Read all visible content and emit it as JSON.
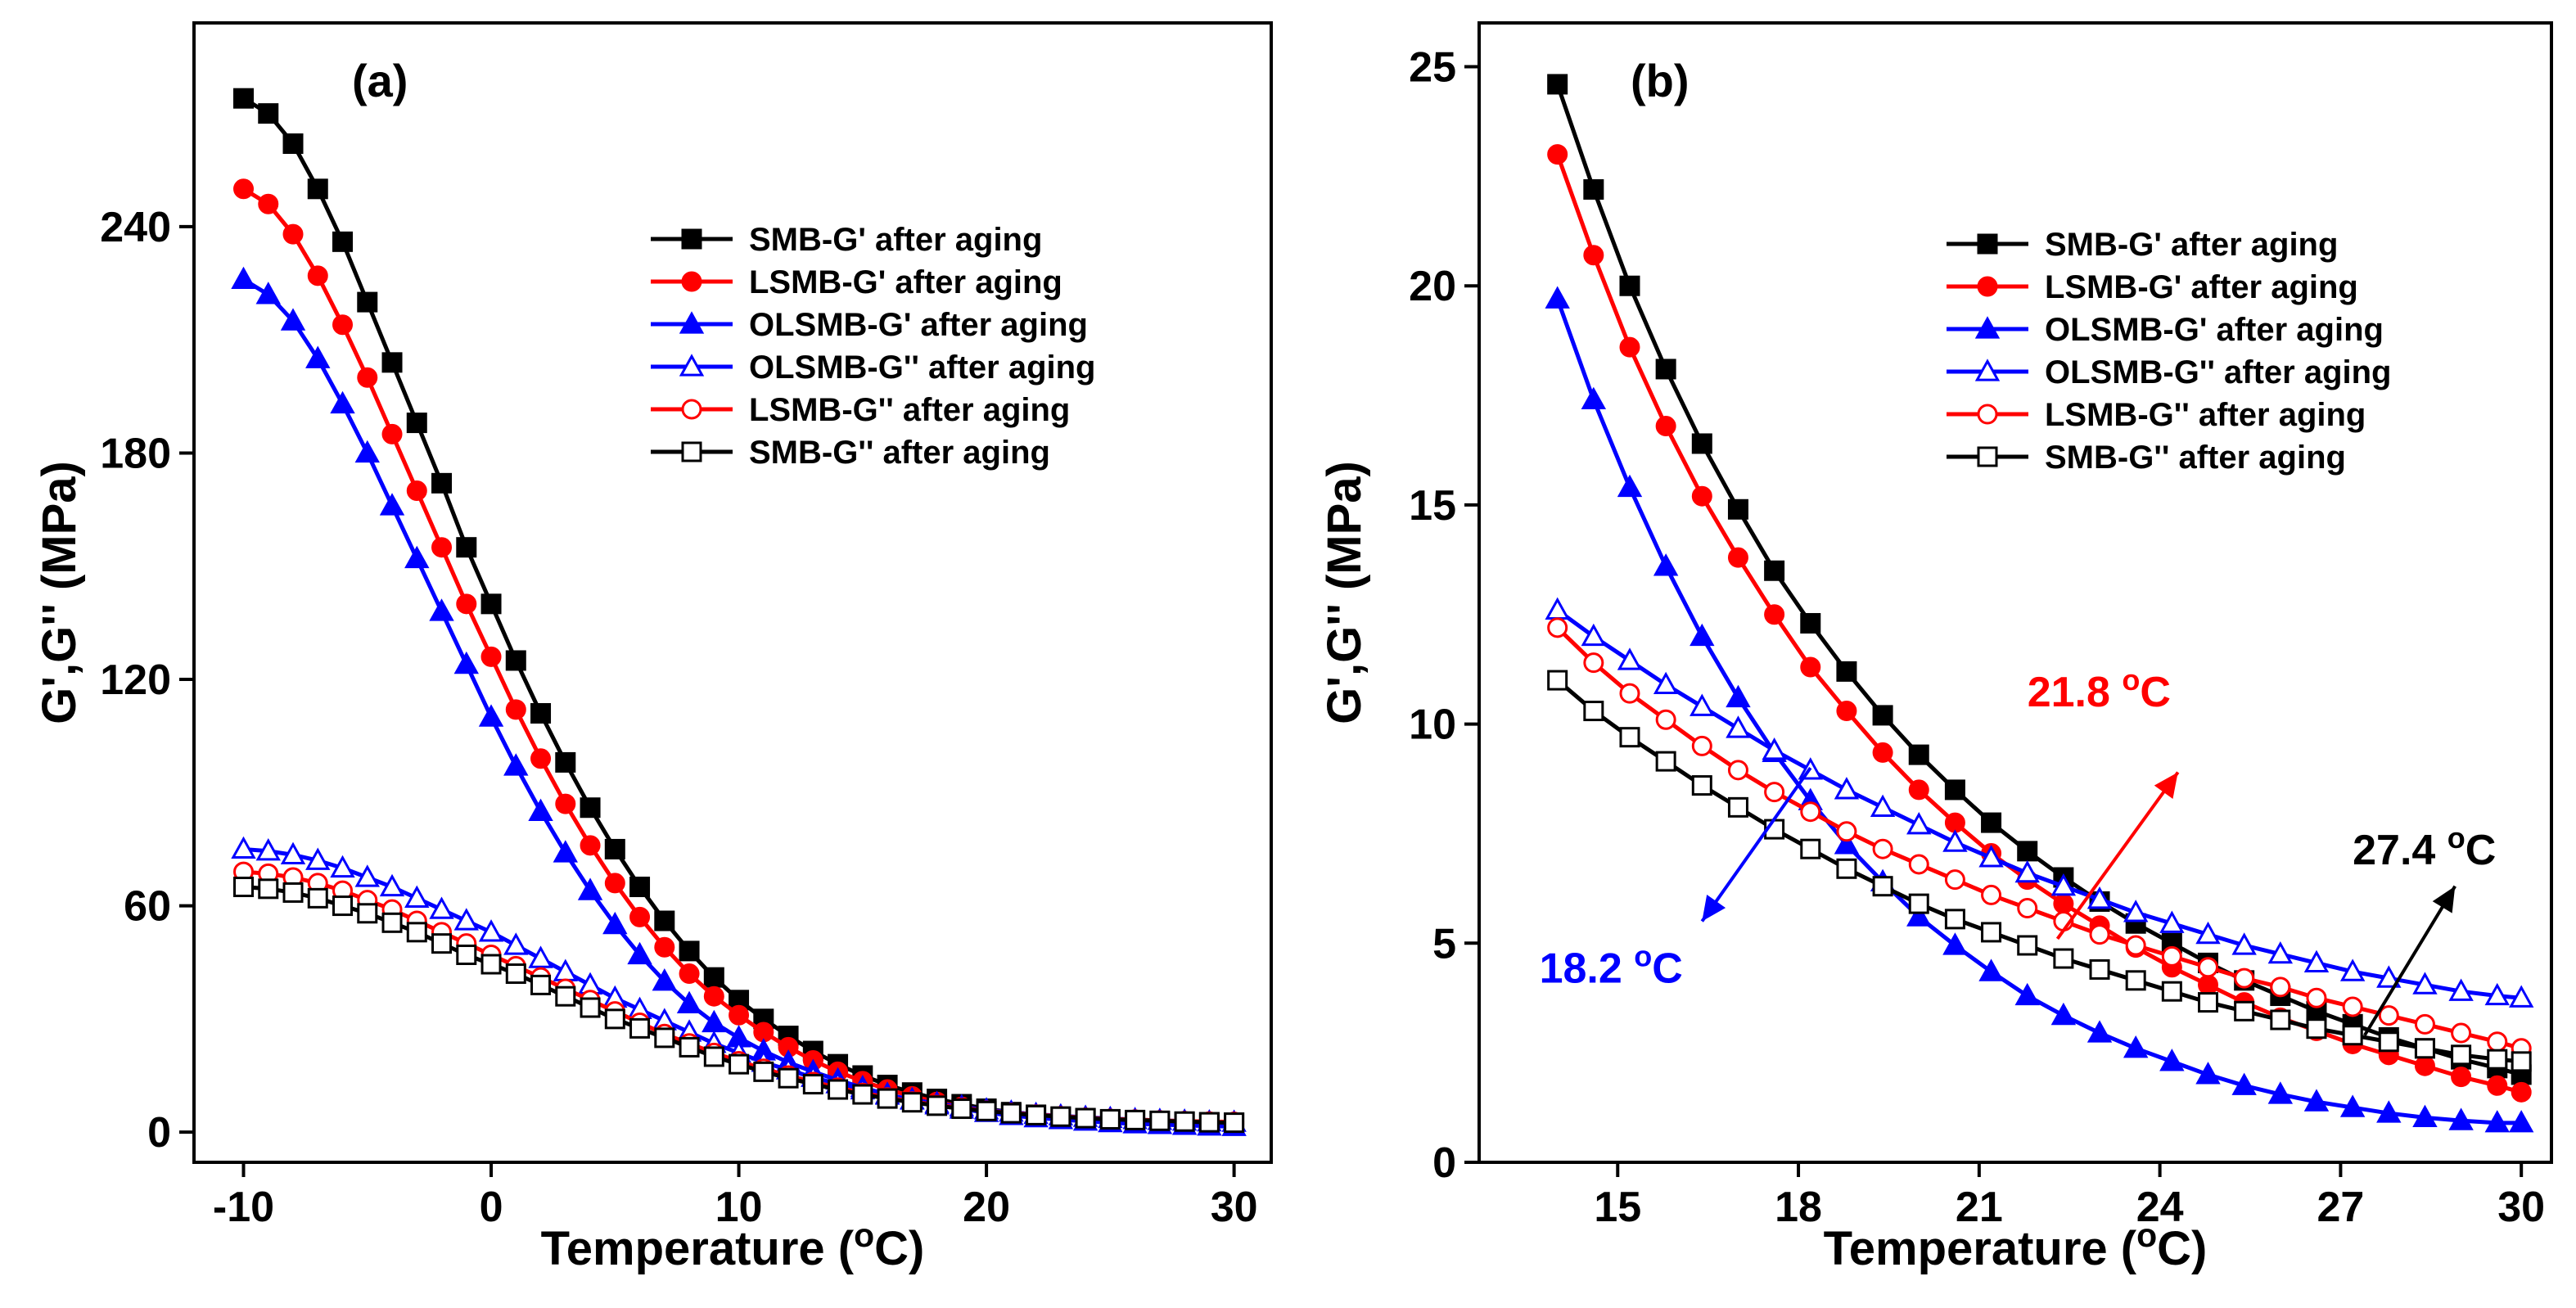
{
  "chart_data": [
    {
      "type": "line",
      "panel_label": "(a)",
      "xlabel": "Temperature (oC)",
      "ylabel": "G',G'' (MPa)",
      "xlim": [
        -12,
        31.5
      ],
      "ylim": [
        -8,
        294
      ],
      "xticks": [
        -10,
        0,
        10,
        20,
        30
      ],
      "yticks": [
        0,
        60,
        120,
        180,
        240
      ],
      "grid": false,
      "legend_position": "top-right",
      "x": [
        -10,
        -9,
        -8,
        -7,
        -6,
        -5,
        -4,
        -3,
        -2,
        -1,
        0,
        1,
        2,
        3,
        4,
        5,
        6,
        7,
        8,
        9,
        10,
        11,
        12,
        13,
        14,
        15,
        16,
        17,
        18,
        19,
        20,
        21,
        22,
        23,
        24,
        25,
        26,
        27,
        28,
        29,
        30
      ],
      "series": [
        {
          "name": "SMB-G' after aging",
          "color": "#000000",
          "marker": "square-filled",
          "values": [
            274,
            270,
            262,
            250,
            236,
            220,
            204,
            188,
            172,
            155,
            140,
            125,
            111,
            98,
            86,
            75,
            65,
            56,
            48,
            41,
            35,
            30,
            25.5,
            21.5,
            18,
            15,
            12.5,
            10.5,
            8.8,
            7.4,
            6.2,
            5.3,
            4.6,
            4.1,
            3.7,
            3.4,
            3.1,
            2.9,
            2.7,
            2.6,
            2.5
          ]
        },
        {
          "name": "LSMB-G' after aging",
          "color": "#ff0000",
          "marker": "circle-filled",
          "values": [
            250,
            246,
            238,
            227,
            214,
            200,
            185,
            170,
            155,
            140,
            126,
            112,
            99,
            87,
            76,
            66,
            57,
            49,
            42,
            36,
            31,
            26.5,
            22.5,
            19,
            16,
            13.5,
            11.3,
            9.5,
            8,
            6.7,
            5.6,
            4.8,
            4.2,
            3.7,
            3.3,
            3,
            2.8,
            2.6,
            2.4,
            2.3,
            2.2
          ]
        },
        {
          "name": "OLSMB-G' after aging",
          "color": "#0000ff",
          "marker": "triangle-filled",
          "values": [
            226,
            222,
            215,
            205,
            193,
            180,
            166,
            152,
            138,
            124,
            110,
            97,
            85,
            74,
            64,
            55,
            47,
            40,
            34,
            29,
            25,
            21.5,
            18.5,
            16,
            13.8,
            11.8,
            10,
            8.5,
            7.2,
            6.1,
            5.2,
            4.4,
            3.8,
            3.3,
            2.9,
            2.5,
            2.2,
            2,
            1.8,
            1.6,
            1.5
          ]
        },
        {
          "name": "OLSMB-G'' after aging",
          "color": "#0000ff",
          "marker": "triangle-open",
          "values": [
            75,
            74.5,
            73.5,
            72,
            70,
            67.5,
            65,
            62,
            59,
            56,
            53,
            49.5,
            46,
            42.5,
            39,
            35.5,
            32.5,
            29.5,
            26.5,
            23.5,
            21,
            18.5,
            16.5,
            14.5,
            12.8,
            11.2,
            9.8,
            8.6,
            7.6,
            6.7,
            5.9,
            5.3,
            4.7,
            4.3,
            3.9,
            3.6,
            3.3,
            3.1,
            2.9,
            2.7,
            2.6
          ]
        },
        {
          "name": "LSMB-G'' after aging",
          "color": "#ff0000",
          "marker": "circle-open",
          "values": [
            69,
            68.5,
            67.5,
            66,
            64,
            61.5,
            59,
            56,
            53,
            50,
            47,
            44,
            41,
            38,
            35,
            32,
            29,
            26,
            23.5,
            21,
            18.8,
            16.8,
            15,
            13.3,
            11.8,
            10.4,
            9.2,
            8.1,
            7.2,
            6.4,
            5.7,
            5.1,
            4.6,
            4.2,
            3.8,
            3.5,
            3.3,
            3.1,
            2.9,
            2.8,
            2.7
          ]
        },
        {
          "name": "SMB-G'' after aging",
          "color": "#000000",
          "marker": "square-open",
          "values": [
            65,
            64.5,
            63.5,
            62,
            60,
            58,
            55.5,
            53,
            50,
            47,
            44.5,
            42,
            39,
            36,
            33,
            30,
            27.5,
            25,
            22.5,
            20,
            18,
            16,
            14.3,
            12.7,
            11.3,
            10,
            8.9,
            7.9,
            7,
            6.2,
            5.6,
            5,
            4.5,
            4.1,
            3.7,
            3.4,
            3.2,
            3,
            2.8,
            2.6,
            2.5
          ]
        }
      ]
    },
    {
      "type": "line",
      "panel_label": "(b)",
      "xlabel": "Temperature (oC)",
      "ylabel": "G',G'' (MPa)",
      "xlim": [
        12.7,
        30.5
      ],
      "ylim": [
        0,
        26
      ],
      "xticks": [
        15,
        18,
        21,
        24,
        27,
        30
      ],
      "yticks": [
        0,
        5,
        10,
        15,
        20,
        25
      ],
      "grid": false,
      "legend_position": "top-right",
      "x": [
        14,
        14.6,
        15.2,
        15.8,
        16.4,
        17,
        17.6,
        18.2,
        18.8,
        19.4,
        20,
        20.6,
        21.2,
        21.8,
        22.4,
        23,
        23.6,
        24.2,
        24.8,
        25.4,
        26,
        26.6,
        27.2,
        27.8,
        28.4,
        29,
        29.6,
        30
      ],
      "series": [
        {
          "name": "SMB-G' after aging",
          "color": "#000000",
          "marker": "square-filled",
          "values": [
            24.6,
            22.2,
            20.0,
            18.1,
            16.4,
            14.9,
            13.5,
            12.3,
            11.2,
            10.2,
            9.3,
            8.5,
            7.75,
            7.1,
            6.5,
            5.95,
            5.45,
            5.0,
            4.55,
            4.15,
            3.8,
            3.45,
            3.15,
            2.85,
            2.6,
            2.35,
            2.15,
            2.0
          ]
        },
        {
          "name": "LSMB-G' after aging",
          "color": "#ff0000",
          "marker": "circle-filled",
          "values": [
            23.0,
            20.7,
            18.6,
            16.8,
            15.2,
            13.8,
            12.5,
            11.3,
            10.3,
            9.35,
            8.5,
            7.75,
            7.05,
            6.45,
            5.9,
            5.4,
            4.9,
            4.45,
            4.05,
            3.65,
            3.3,
            3.0,
            2.7,
            2.45,
            2.2,
            1.95,
            1.75,
            1.6
          ]
        },
        {
          "name": "OLSMB-G' after aging",
          "color": "#0000ff",
          "marker": "triangle-filled",
          "values": [
            19.7,
            17.4,
            15.4,
            13.6,
            12.0,
            10.6,
            9.35,
            8.25,
            7.25,
            6.4,
            5.6,
            4.95,
            4.35,
            3.8,
            3.35,
            2.95,
            2.6,
            2.3,
            2.0,
            1.75,
            1.55,
            1.38,
            1.25,
            1.12,
            1.02,
            0.95,
            0.9,
            0.9
          ]
        },
        {
          "name": "OLSMB-G'' after aging",
          "color": "#0000ff",
          "marker": "triangle-open",
          "values": [
            12.6,
            12.0,
            11.45,
            10.9,
            10.4,
            9.9,
            9.4,
            8.95,
            8.5,
            8.1,
            7.7,
            7.3,
            6.95,
            6.6,
            6.3,
            6.0,
            5.7,
            5.45,
            5.2,
            4.95,
            4.75,
            4.55,
            4.35,
            4.2,
            4.05,
            3.9,
            3.8,
            3.75
          ]
        },
        {
          "name": "LSMB-G'' after aging",
          "color": "#ff0000",
          "marker": "circle-open",
          "values": [
            12.2,
            11.4,
            10.7,
            10.1,
            9.5,
            8.95,
            8.45,
            8.0,
            7.55,
            7.15,
            6.8,
            6.45,
            6.1,
            5.8,
            5.5,
            5.2,
            4.95,
            4.7,
            4.45,
            4.2,
            4.0,
            3.75,
            3.55,
            3.35,
            3.15,
            2.95,
            2.75,
            2.6
          ]
        },
        {
          "name": "SMB-G'' after aging",
          "color": "#000000",
          "marker": "square-open",
          "values": [
            11.0,
            10.3,
            9.7,
            9.15,
            8.6,
            8.1,
            7.6,
            7.15,
            6.7,
            6.3,
            5.9,
            5.55,
            5.25,
            4.95,
            4.65,
            4.4,
            4.15,
            3.9,
            3.65,
            3.45,
            3.25,
            3.05,
            2.9,
            2.75,
            2.6,
            2.45,
            2.35,
            2.3
          ]
        }
      ],
      "annotations": [
        {
          "text": "21.8 oC",
          "color": "#ff0000",
          "arrow_from": [
            22.3,
            5.1
          ],
          "arrow_to": [
            24.3,
            8.9
          ],
          "label_at": [
            21.8,
            10.4
          ]
        },
        {
          "text": "18.2 oC",
          "color": "#0000ff",
          "arrow_from": [
            18.2,
            9.0
          ],
          "arrow_to": [
            16.4,
            5.5
          ],
          "label_at": [
            13.7,
            4.1
          ]
        },
        {
          "text": "27.4 oC",
          "color": "#000000",
          "arrow_from": [
            27.4,
            2.9
          ],
          "arrow_to": [
            28.9,
            6.3
          ],
          "label_at": [
            27.2,
            6.8
          ]
        }
      ]
    }
  ]
}
